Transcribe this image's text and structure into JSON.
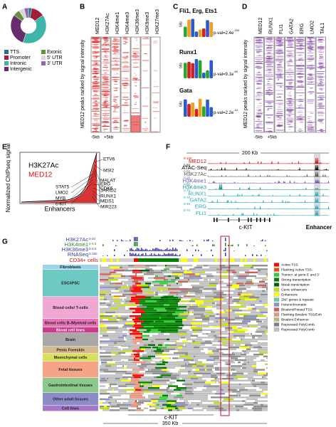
{
  "panel_labels": [
    "A",
    "B",
    "C",
    "D",
    "E",
    "F",
    "G"
  ],
  "panel_a": {
    "segments": [
      {
        "label": "TTS",
        "color": "#2a6f8f",
        "value": 3
      },
      {
        "label": "Promoter",
        "color": "#a0203a",
        "value": 12
      },
      {
        "label": "Intronic",
        "color": "#3fb5a8",
        "value": 40
      },
      {
        "label": "Intergenic",
        "color": "#6a2c6e",
        "value": 30
      },
      {
        "label": "Exonic",
        "color": "#6a8f3a",
        "value": 6
      },
      {
        "label": "5' UTR",
        "color": "#d8d8d8",
        "value": 5
      },
      {
        "label": "3' UTR",
        "color": "#8a6aa8",
        "value": 4
      }
    ]
  },
  "panel_b": {
    "columns": [
      "MED12",
      "H3K27Ac",
      "H3K4me1",
      "H3K4me3",
      "H3K36me3",
      "H3K9me3",
      "H3K27me3"
    ],
    "y_label": "MED12 peaks ranked by signal intensity",
    "x_left": "-5kb",
    "x_right": "+5kb"
  },
  "panel_c": {
    "y_label": "bits",
    "motifs": [
      {
        "name": "Fli1, Erg, Ets1",
        "pval": "p-val=2.4e",
        "exp": "-154"
      },
      {
        "name": "Runx1",
        "pval": "p-val=9.1e",
        "exp": "-60"
      },
      {
        "name": "Gata",
        "pval": "p-val=2.2e",
        "exp": "-10"
      }
    ]
  },
  "panel_d": {
    "columns": [
      "MED12",
      "RUNX1",
      "FLI1",
      "GATA2",
      "ERG",
      "LMO2",
      "TAL1"
    ],
    "y_label": "MED12 peaks ranked by signal intensity",
    "x_left": "-5kb",
    "x_right": "+5kb"
  },
  "panel_e": {
    "tracks": [
      {
        "name": "H3K27Ac",
        "color": "#000000"
      },
      {
        "name": "MED12",
        "color": "#d01010"
      }
    ],
    "y_label": "Normalized ChIPseq signal",
    "x_label": "Enhancers",
    "genes": [
      "ETV6",
      "MSI2",
      "MALAT",
      "CDK6",
      "STAT5",
      "LMO2",
      "MYB",
      "c-KIT",
      "ERG",
      "JARID2",
      "RUNX1",
      "MEIS1",
      "MIR223"
    ]
  },
  "panel_f": {
    "scale": "200 Kb",
    "gene": "c-KIT",
    "highlight": "Enhancer",
    "tracks": [
      {
        "name": "MED12",
        "range": "0-100",
        "color": "#d01010"
      },
      {
        "name": "ATAC-Seq",
        "range": "0-50",
        "color": "#000000"
      },
      {
        "name": "H3K27Ac",
        "range": "0-50",
        "color": "#555555"
      },
      {
        "name": "H3K4me1",
        "range": "0-25",
        "color": "#6a4aa8"
      },
      {
        "name": "H3K4me3",
        "range": "0-50",
        "color": "#1a8a8a"
      },
      {
        "name": "RUNX1",
        "range": "0-70",
        "color": "#1aa8c0"
      },
      {
        "name": "GATA2",
        "range": "0-70",
        "color": "#1aa8c0"
      },
      {
        "name": "ERG",
        "range": "0-40",
        "color": "#1aa8c0"
      },
      {
        "name": "FLI1",
        "range": "0-70",
        "color": "#1aa8c0"
      }
    ]
  },
  "panel_g": {
    "reference": "CD34+ cells",
    "gene": "c-KIT",
    "scale": "350 Kb",
    "tracks": [
      {
        "name": "H3K27Ac",
        "range": "0-20",
        "color": "#3a3aa0"
      },
      {
        "name": "H3K4me1",
        "range": "0-4.5",
        "color": "#2a8a2a"
      },
      {
        "name": "H3K36me3",
        "range": "0-3.5",
        "color": "#3a3aa0"
      },
      {
        "name": "RNASeq",
        "range": "0-150",
        "color": "#3a3aa0"
      }
    ],
    "groups": [
      {
        "name": "Fibroblasts",
        "color": "#9fd3ea"
      },
      {
        "name": "ESC/iPSC",
        "color": "#6cc9c4"
      },
      {
        "name": "Blood cells/ T-cells",
        "color": "#f0a8d2"
      },
      {
        "name": "Blood cells B-/Myeloid cells",
        "color": "#e874b6"
      },
      {
        "name": "Blood cell lines",
        "color": "#c83c8c"
      },
      {
        "name": "Brain",
        "color": "#a8a8a8"
      },
      {
        "name": "Penis Foreskin",
        "color": "#d6b98c"
      },
      {
        "name": "Meenchymal cells",
        "color": "#d8e05a"
      },
      {
        "name": "Fetal tissues",
        "color": "#f5a488"
      },
      {
        "name": "Gastrointestinal tissues",
        "color": "#8cc88c"
      },
      {
        "name": "Other adult tissues",
        "color": "#8c8cc8"
      },
      {
        "name": "Cell lines",
        "color": "#a878c8"
      }
    ],
    "legend": [
      {
        "label": "Active TSS",
        "color": "#ff0000"
      },
      {
        "label": "Flanking Active TSS",
        "color": "#ff4500"
      },
      {
        "label": "Transcr. at gene 5' and 3'",
        "color": "#32cd32"
      },
      {
        "label": "Strong transcription",
        "color": "#008000"
      },
      {
        "label": "Weak transcription",
        "color": "#006400"
      },
      {
        "label": "Genic enhancers",
        "color": "#c2e105"
      },
      {
        "label": "Enhancers",
        "color": "#ffff00"
      },
      {
        "label": "ZNF genes & repeats",
        "color": "#66cdaa"
      },
      {
        "label": "Heterochromatin",
        "color": "#8a91d0"
      },
      {
        "label": "Bivalent/Poised TSS",
        "color": "#cd5c5c"
      },
      {
        "label": "Flanking Bivalent TSS/Enh",
        "color": "#e9967a"
      },
      {
        "label": "Bivalent Enhancer",
        "color": "#bdb76b"
      },
      {
        "label": "Repressed PolyComb",
        "color": "#808080"
      },
      {
        "label": "Repressed PolyComb",
        "color": "#c0c0c0"
      }
    ]
  }
}
